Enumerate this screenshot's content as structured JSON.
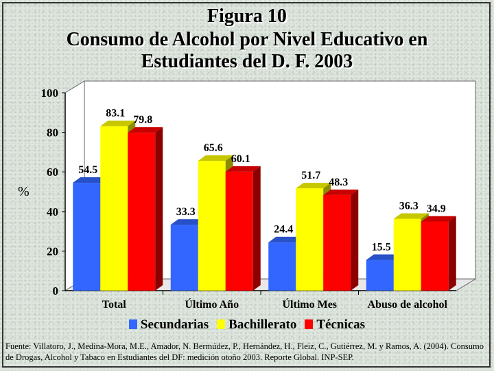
{
  "title_line1": "Figura 10",
  "title_line2": "Consumo de Alcohol por Nivel Educativo en",
  "title_line3": "Estudiantes  del D. F. 2003",
  "source_text": "Fuente: Villatoro, J., Medina-Mora, M.E., Amador, N. Bermúdez, P., Hernández, H., Fleiz, C., Gutiérrez, M. y Ramos, A. (2004). Consumo de Drogas, Alcohol y Tabaco en Estudiantes del DF: medición otoño 2003. Reporte Global. INP-SEP.",
  "chart_data": {
    "type": "bar",
    "title": "Consumo de Alcohol por Nivel Educativo en Estudiantes del D. F. 2003",
    "ylabel": "%",
    "xlabel": "",
    "ylim": [
      0,
      100
    ],
    "yticks": [
      "0",
      "20",
      "40",
      "60",
      "80",
      "100"
    ],
    "categories": [
      "Total",
      "Último Año",
      "Último Mes",
      "Abuso de alcohol"
    ],
    "series": [
      {
        "name": "Secundarias",
        "values": [
          54.5,
          33.3,
          24.4,
          15.5
        ],
        "color": "#3366ff"
      },
      {
        "name": "Bachillerato",
        "values": [
          83.1,
          65.6,
          51.7,
          36.3
        ],
        "color": "#ffff00"
      },
      {
        "name": "Técnicas",
        "values": [
          79.8,
          60.1,
          48.3,
          34.9
        ],
        "color": "#ff0000"
      }
    ],
    "legend_position": "bottom",
    "grid": false,
    "style": "3d"
  }
}
